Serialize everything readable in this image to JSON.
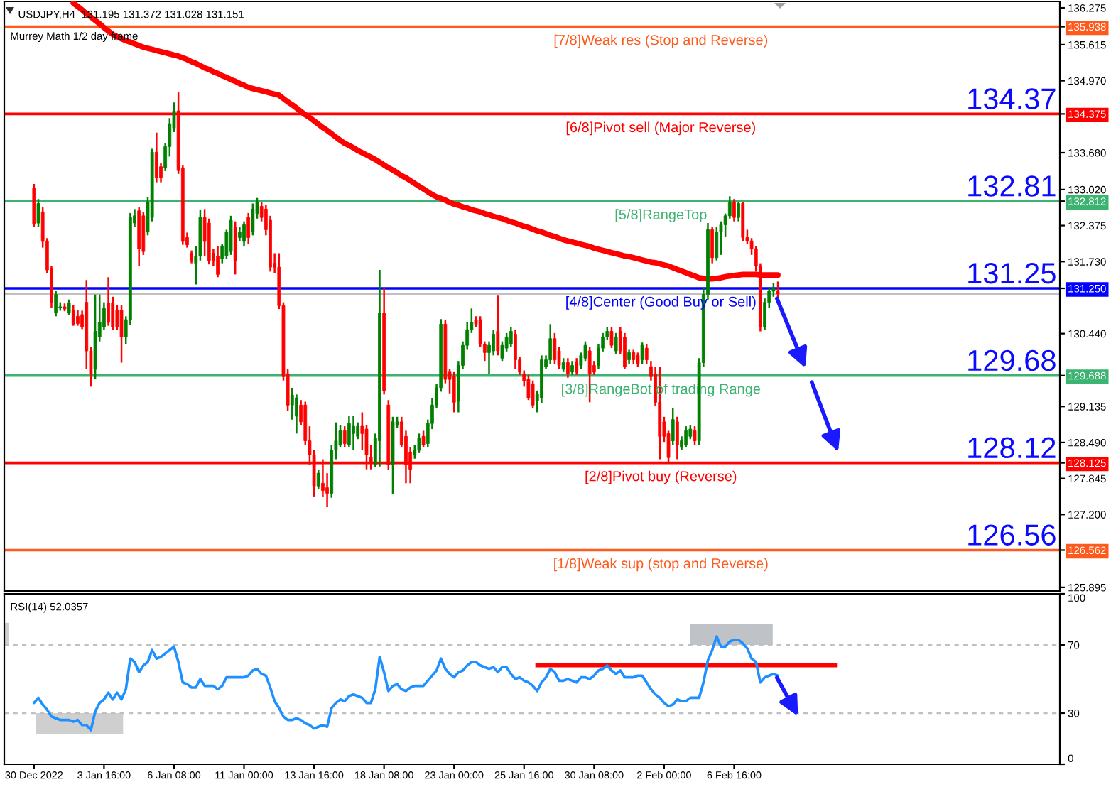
{
  "chart_data": [
    {
      "type": "candlestick",
      "title": "USDJPY,H4  131.195 131.372 131.028 131.151",
      "subtitle": "Murrey Math 1/2 day frame",
      "categories": [
        null,
        null,
        null,
        null,
        null,
        null,
        null,
        null,
        null,
        null,
        null,
        null,
        null,
        null,
        null,
        null,
        null,
        null,
        null,
        null,
        null,
        null,
        null,
        null,
        null,
        null,
        null,
        null,
        null,
        null,
        null,
        null,
        null,
        null,
        null,
        null,
        null,
        null,
        null,
        null,
        null,
        null,
        null,
        null,
        null,
        null,
        null,
        null,
        null,
        null,
        null,
        null,
        null,
        null,
        null,
        null,
        null,
        null,
        null,
        null,
        null,
        null,
        null,
        null,
        null,
        null,
        null,
        null,
        null,
        null,
        null,
        null,
        null,
        null,
        null,
        null,
        null,
        null,
        null,
        null,
        null,
        null,
        null,
        null,
        null,
        null,
        null,
        null,
        null,
        null,
        null,
        null,
        null,
        null,
        null,
        null,
        null,
        null,
        null,
        null,
        null,
        null,
        null,
        null,
        null,
        null,
        null,
        null,
        null,
        null,
        null,
        null,
        null,
        null,
        null,
        null,
        null,
        null,
        null,
        null,
        null,
        null,
        null,
        null,
        null,
        null,
        null,
        null,
        null,
        null,
        null,
        null,
        null,
        null,
        null,
        null,
        null,
        null,
        null,
        null,
        null,
        null,
        null,
        null,
        null,
        null,
        null,
        null,
        null,
        null,
        null,
        null,
        null,
        null,
        null,
        null,
        null,
        null,
        null,
        null,
        null,
        null,
        null,
        null,
        null,
        null,
        null,
        null,
        null,
        null,
        null
      ],
      "ohlc": [
        [
          133.05,
          133.12,
          132.35,
          132.4
        ],
        [
          132.42,
          132.85,
          132.35,
          132.77
        ],
        [
          132.62,
          132.7,
          131.98,
          132.09
        ],
        [
          132.1,
          132.15,
          131.53,
          131.58
        ],
        [
          131.6,
          131.65,
          130.9,
          130.99
        ],
        [
          130.81,
          131.2,
          130.75,
          131.14
        ],
        [
          130.9,
          131.0,
          130.85,
          130.92
        ],
        [
          130.92,
          130.98,
          130.84,
          130.88
        ],
        [
          130.81,
          131.05,
          130.78,
          130.99
        ],
        [
          130.86,
          130.95,
          130.58,
          130.61
        ],
        [
          130.75,
          130.86,
          130.58,
          130.62
        ],
        [
          130.78,
          130.85,
          130.52,
          130.56
        ],
        [
          131.0,
          131.4,
          129.8,
          130.13
        ],
        [
          130.13,
          130.2,
          129.49,
          129.72
        ],
        [
          129.8,
          131.14,
          129.62,
          130.48
        ],
        [
          130.38,
          131.14,
          130.3,
          130.64
        ],
        [
          130.56,
          131.0,
          130.5,
          130.89
        ],
        [
          130.99,
          131.45,
          130.58,
          130.64
        ],
        [
          130.99,
          131.1,
          130.5,
          130.56
        ],
        [
          130.86,
          130.95,
          130.5,
          130.56
        ],
        [
          130.86,
          130.95,
          129.92,
          130.38
        ],
        [
          130.38,
          130.75,
          130.25,
          130.69
        ],
        [
          130.69,
          132.6,
          130.6,
          132.52
        ],
        [
          132.42,
          132.67,
          132.35,
          132.55
        ],
        [
          132.64,
          132.7,
          131.65,
          131.96
        ],
        [
          132.55,
          132.62,
          131.85,
          131.91
        ],
        [
          132.26,
          132.88,
          132.2,
          132.8
        ],
        [
          132.52,
          133.75,
          132.45,
          133.69
        ],
        [
          133.69,
          134.04,
          133.15,
          133.23
        ],
        [
          133.43,
          133.5,
          133.15,
          133.23
        ],
        [
          133.41,
          133.85,
          133.35,
          133.79
        ],
        [
          133.79,
          134.3,
          133.61,
          134.2
        ],
        [
          134.12,
          134.58,
          134.05,
          134.43
        ],
        [
          134.43,
          134.76,
          133.3,
          133.36
        ],
        [
          133.41,
          133.45,
          132.03,
          132.09
        ],
        [
          132.16,
          132.25,
          131.98,
          132.03
        ],
        [
          131.88,
          131.93,
          131.7,
          131.75
        ],
        [
          131.7,
          132.01,
          131.32,
          131.83
        ],
        [
          131.83,
          132.65,
          131.75,
          132.52
        ],
        [
          132.52,
          132.67,
          131.83,
          132.09
        ],
        [
          132.42,
          132.5,
          131.68,
          131.75
        ],
        [
          131.88,
          131.95,
          131.65,
          131.75
        ],
        [
          131.83,
          132.01,
          131.45,
          131.5
        ],
        [
          131.78,
          132.05,
          131.7,
          132.01
        ],
        [
          131.83,
          132.3,
          131.78,
          132.26
        ],
        [
          131.91,
          132.55,
          131.85,
          132.47
        ],
        [
          132.34,
          132.45,
          131.5,
          131.75
        ],
        [
          132.16,
          132.35,
          132.1,
          132.26
        ],
        [
          132.09,
          132.45,
          132.0,
          132.39
        ],
        [
          132.52,
          132.6,
          132.05,
          132.16
        ],
        [
          132.26,
          132.77,
          132.2,
          132.67
        ],
        [
          132.59,
          132.87,
          132.5,
          132.8
        ],
        [
          132.72,
          132.8,
          132.45,
          132.52
        ],
        [
          132.67,
          132.75,
          132.2,
          132.3
        ],
        [
          132.47,
          132.55,
          131.55,
          131.63
        ],
        [
          131.7,
          131.88,
          131.52,
          131.63
        ],
        [
          131.63,
          131.88,
          130.88,
          130.94
        ],
        [
          130.94,
          131.0,
          129.6,
          129.67
        ],
        [
          129.72,
          129.8,
          129.05,
          129.16
        ],
        [
          129.16,
          129.47,
          128.9,
          129.34
        ],
        [
          128.96,
          129.35,
          128.65,
          129.29
        ],
        [
          129.16,
          129.25,
          128.8,
          128.86
        ],
        [
          129.16,
          129.22,
          128.45,
          128.52
        ],
        [
          128.52,
          128.78,
          128.09,
          128.27
        ],
        [
          128.27,
          128.35,
          127.51,
          127.71
        ],
        [
          127.71,
          128.0,
          127.65,
          127.94
        ],
        [
          127.76,
          128.19,
          127.51,
          127.63
        ],
        [
          127.68,
          127.94,
          127.33,
          127.58
        ],
        [
          127.58,
          128.45,
          127.5,
          128.35
        ],
        [
          128.35,
          128.85,
          128.19,
          128.52
        ],
        [
          128.45,
          128.8,
          128.4,
          128.7
        ],
        [
          128.7,
          128.78,
          128.4,
          128.47
        ],
        [
          128.45,
          128.96,
          128.4,
          128.83
        ],
        [
          128.65,
          128.96,
          128.35,
          128.78
        ],
        [
          128.6,
          128.85,
          128.55,
          128.78
        ],
        [
          128.78,
          129.03,
          128.35,
          128.65
        ],
        [
          128.73,
          128.8,
          128.01,
          128.27
        ],
        [
          128.22,
          128.45,
          128.01,
          128.14
        ],
        [
          128.09,
          128.65,
          128.05,
          128.57
        ],
        [
          128.52,
          131.58,
          128.06,
          130.81
        ],
        [
          130.81,
          131.25,
          129.35,
          129.41
        ],
        [
          129.16,
          129.25,
          128.0,
          128.09
        ],
        [
          128.09,
          128.95,
          127.56,
          128.86
        ],
        [
          128.8,
          128.95,
          128.75,
          128.86
        ],
        [
          128.86,
          128.95,
          128.4,
          128.45
        ],
        [
          128.6,
          128.7,
          127.76,
          128.09
        ],
        [
          128.32,
          128.4,
          127.76,
          128.01
        ],
        [
          128.27,
          128.45,
          128.2,
          128.35
        ],
        [
          128.35,
          128.65,
          128.3,
          128.57
        ],
        [
          128.6,
          128.7,
          128.4,
          128.45
        ],
        [
          128.47,
          128.9,
          128.4,
          128.83
        ],
        [
          128.83,
          129.29,
          128.73,
          129.16
        ],
        [
          129.16,
          129.54,
          129.1,
          129.47
        ],
        [
          129.47,
          130.7,
          129.4,
          130.61
        ],
        [
          130.61,
          130.68,
          129.55,
          129.62
        ],
        [
          129.75,
          129.8,
          129.37,
          129.62
        ],
        [
          129.67,
          129.75,
          129.03,
          129.21
        ],
        [
          129.23,
          129.95,
          129.03,
          129.87
        ],
        [
          129.87,
          130.3,
          129.8,
          130.23
        ],
        [
          130.23,
          130.64,
          130.15,
          130.51
        ],
        [
          130.51,
          130.89,
          130.45,
          130.64
        ],
        [
          130.69,
          130.75,
          130.55,
          130.61
        ],
        [
          130.69,
          130.75,
          130.2,
          130.25
        ],
        [
          130.25,
          130.3,
          129.95,
          130.1
        ],
        [
          130.1,
          130.3,
          129.72,
          130.23
        ],
        [
          130.13,
          130.5,
          130.05,
          130.43
        ],
        [
          130.48,
          131.12,
          130.05,
          130.13
        ],
        [
          130.0,
          130.3,
          129.95,
          130.23
        ],
        [
          130.18,
          130.45,
          130.12,
          130.38
        ],
        [
          130.25,
          130.56,
          130.2,
          130.48
        ],
        [
          130.43,
          130.5,
          129.8,
          129.97
        ],
        [
          129.97,
          130.02,
          129.7,
          129.75
        ],
        [
          129.72,
          129.78,
          129.49,
          129.59
        ],
        [
          129.62,
          129.7,
          129.25,
          129.29
        ],
        [
          129.54,
          129.6,
          129.1,
          129.16
        ],
        [
          129.24,
          129.42,
          129.03,
          129.36
        ],
        [
          129.29,
          130.05,
          129.2,
          129.97
        ],
        [
          129.85,
          130.05,
          129.8,
          129.97
        ],
        [
          129.97,
          130.61,
          129.9,
          130.35
        ],
        [
          130.35,
          130.45,
          129.9,
          129.97
        ],
        [
          130.13,
          130.2,
          129.8,
          129.87
        ],
        [
          129.8,
          130.0,
          129.75,
          129.92
        ],
        [
          129.92,
          130.0,
          129.65,
          129.72
        ],
        [
          129.75,
          129.95,
          129.7,
          129.87
        ],
        [
          129.92,
          130.0,
          129.7,
          129.75
        ],
        [
          129.87,
          130.1,
          129.8,
          130.05
        ],
        [
          130.0,
          130.3,
          129.95,
          130.23
        ],
        [
          130.13,
          130.2,
          129.21,
          129.72
        ],
        [
          129.87,
          129.95,
          129.7,
          129.75
        ],
        [
          129.87,
          130.25,
          129.8,
          130.18
        ],
        [
          130.18,
          130.45,
          130.12,
          130.38
        ],
        [
          130.38,
          130.56,
          130.33,
          130.48
        ],
        [
          130.48,
          130.55,
          130.18,
          130.23
        ],
        [
          130.13,
          130.45,
          130.08,
          130.38
        ],
        [
          130.48,
          130.55,
          130.08,
          130.13
        ],
        [
          130.38,
          130.45,
          129.8,
          129.85
        ],
        [
          129.97,
          130.15,
          129.9,
          130.1
        ],
        [
          130.1,
          130.15,
          129.9,
          129.97
        ],
        [
          130.05,
          130.1,
          129.85,
          129.9
        ],
        [
          129.97,
          130.28,
          129.9,
          130.23
        ],
        [
          130.18,
          130.25,
          129.9,
          129.97
        ],
        [
          129.85,
          129.95,
          129.6,
          129.67
        ],
        [
          129.72,
          129.85,
          129.15,
          129.21
        ],
        [
          129.21,
          129.85,
          128.19,
          128.6
        ],
        [
          128.86,
          128.95,
          128.5,
          128.6
        ],
        [
          128.65,
          128.7,
          128.14,
          128.22
        ],
        [
          128.52,
          129.11,
          128.45,
          128.9
        ],
        [
          128.86,
          128.95,
          128.19,
          128.45
        ],
        [
          128.4,
          128.6,
          128.35,
          128.52
        ],
        [
          128.45,
          128.78,
          128.4,
          128.7
        ],
        [
          128.6,
          128.8,
          128.55,
          128.73
        ],
        [
          128.7,
          128.78,
          128.45,
          128.52
        ],
        [
          128.52,
          130.0,
          128.45,
          129.92
        ],
        [
          129.92,
          131.25,
          129.85,
          131.14
        ],
        [
          131.14,
          132.42,
          131.05,
          132.3
        ],
        [
          132.3,
          132.35,
          131.7,
          131.8
        ],
        [
          131.8,
          132.35,
          131.75,
          132.26
        ],
        [
          132.26,
          132.45,
          131.85,
          132.39
        ],
        [
          132.39,
          132.59,
          132.18,
          132.55
        ],
        [
          132.55,
          132.9,
          132.5,
          132.8
        ],
        [
          132.8,
          132.85,
          132.45,
          132.52
        ],
        [
          132.52,
          132.8,
          132.45,
          132.77
        ],
        [
          132.77,
          132.8,
          132.1,
          132.16
        ],
        [
          132.16,
          132.3,
          132.05,
          132.1
        ],
        [
          132.1,
          132.15,
          131.85,
          131.96
        ],
        [
          131.96,
          132.0,
          131.55,
          131.65
        ],
        [
          131.65,
          131.7,
          130.48,
          130.56
        ],
        [
          130.56,
          131.07,
          130.5,
          131.0
        ],
        [
          131.0,
          131.25,
          130.9,
          131.2
        ],
        [
          131.2,
          131.35,
          131.1,
          131.25
        ],
        [
          131.195,
          131.372,
          131.028,
          131.151
        ]
      ],
      "series": [
        {
          "type": "line",
          "color": "#ff0000",
          "values": [
            null,
            null,
            null,
            null,
            null,
            null,
            null,
            null,
            null,
            136.36,
            136.3,
            136.24,
            136.17,
            136.11,
            136.05,
            135.99,
            135.92,
            135.86,
            135.8,
            135.76,
            135.72,
            135.69,
            135.66,
            135.63,
            135.6,
            135.57,
            135.55,
            135.53,
            135.51,
            135.49,
            135.47,
            135.45,
            135.43,
            135.41,
            135.38,
            135.35,
            135.31,
            135.28,
            135.24,
            135.2,
            135.17,
            135.13,
            135.1,
            135.06,
            135.03,
            134.99,
            134.96,
            134.92,
            134.89,
            134.85,
            134.83,
            134.81,
            134.79,
            134.77,
            134.75,
            134.73,
            134.71,
            134.65,
            134.59,
            134.54,
            134.48,
            134.42,
            134.36,
            134.31,
            134.25,
            134.19,
            134.13,
            134.08,
            134.02,
            133.96,
            133.9,
            133.85,
            133.81,
            133.77,
            133.72,
            133.68,
            133.64,
            133.6,
            133.56,
            133.51,
            133.46,
            133.41,
            133.37,
            133.32,
            133.27,
            133.23,
            133.18,
            133.13,
            133.08,
            133.03,
            132.98,
            132.93,
            132.89,
            132.86,
            132.83,
            132.79,
            132.76,
            132.74,
            132.71,
            132.69,
            132.66,
            132.64,
            132.62,
            132.59,
            132.57,
            132.54,
            132.52,
            132.5,
            132.47,
            132.44,
            132.42,
            132.39,
            132.36,
            132.34,
            132.31,
            132.28,
            132.26,
            132.23,
            132.2,
            132.18,
            132.15,
            132.12,
            132.1,
            132.08,
            132.06,
            132.04,
            132.02,
            132.0,
            131.97,
            131.95,
            131.93,
            131.91,
            131.89,
            131.87,
            131.85,
            131.83,
            131.82,
            131.8,
            131.78,
            131.76,
            131.74,
            131.72,
            131.71,
            131.69,
            131.67,
            131.65,
            131.62,
            131.59,
            131.56,
            131.53,
            131.5,
            131.47,
            131.44,
            131.43,
            131.42,
            131.42,
            131.43,
            131.44,
            131.46,
            131.47,
            131.48,
            131.49,
            131.5,
            131.5,
            131.5,
            131.5,
            131.49,
            131.49,
            131.49,
            131.49,
            131.49
          ]
        }
      ],
      "ylim": [
        125.83,
        136.39
      ],
      "yticks": [
        136.275,
        135.938,
        135.615,
        {
          "value": 134.97,
          "label": "134.970"
        },
        134.375,
        {
          "value": 133.68,
          "label": "133.680"
        },
        {
          "value": 133.02,
          "label": "133.020"
        },
        132.812,
        132.375,
        {
          "value": 131.73,
          "label": "131.730"
        },
        {
          "value": 131.25,
          "label": "131.250"
        },
        {
          "value": 130.44,
          "label": "130.440"
        },
        129.688,
        129.135,
        {
          "value": 128.49,
          "label": "128.490"
        },
        128.125,
        127.845,
        {
          "value": 127.2,
          "label": "127.200"
        },
        126.562,
        125.895
      ],
      "ref_lines": [
        {
          "axis": "y",
          "value": 135.938,
          "label": "[7/8]Weak res (Stop and Reverse)",
          "color": "#ff5a1e"
        },
        {
          "axis": "y",
          "value": 134.375,
          "label": "[6/8]Pivot sell (Major Reverse)",
          "color": "#ff0000"
        },
        {
          "axis": "y",
          "value": 132.812,
          "label": "[5/8]RangeTop",
          "color": "#3cb371"
        },
        {
          "axis": "y",
          "value": 131.25,
          "label": "[4/8]Center (Good Buy or Sell)",
          "color": "#0000ff"
        },
        {
          "axis": "y",
          "value": 129.688,
          "label": "[3/8]RangeBot of trading Range",
          "color": "#3cb371"
        },
        {
          "axis": "y",
          "value": 128.125,
          "label": "[2/8]Pivot buy (Reverse)",
          "color": "#ff0000"
        },
        {
          "axis": "y",
          "value": 126.562,
          "label": "[1/8]Weak sup (stop and Reverse)",
          "color": "#ff5a1e"
        },
        {
          "axis": "y",
          "value": 131.151,
          "color": "#c0c0c0"
        }
      ],
      "annotations": [
        {
          "text": "134.37",
          "y": 134.375
        },
        {
          "text": "132.81",
          "y": 132.812
        },
        {
          "text": "131.25",
          "y": 131.25
        },
        {
          "text": "129.68",
          "y": 129.688
        },
        {
          "text": "128.12",
          "y": 128.125
        },
        {
          "text": "126.56",
          "y": 126.562
        }
      ]
    },
    {
      "type": "line",
      "title": "RSI(14) 52.0357",
      "categories": [
        "30 Dec 2022",
        null,
        null,
        null,
        null,
        null,
        null,
        null,
        null,
        null,
        null,
        null,
        null,
        null,
        null,
        null,
        "3 Jan 16:00",
        null,
        null,
        null,
        null,
        null,
        null,
        null,
        null,
        null,
        null,
        null,
        null,
        null,
        null,
        null,
        "6 Jan 08:00",
        null,
        null,
        null,
        null,
        null,
        null,
        null,
        null,
        null,
        null,
        null,
        null,
        null,
        null,
        null,
        "11 Jan 00:00",
        null,
        null,
        null,
        null,
        null,
        null,
        null,
        null,
        null,
        null,
        null,
        null,
        null,
        null,
        null,
        "13 Jan 16:00",
        null,
        null,
        null,
        null,
        null,
        null,
        null,
        null,
        null,
        null,
        null,
        null,
        null,
        null,
        null,
        "18 Jan 08:00",
        null,
        null,
        null,
        null,
        null,
        null,
        null,
        null,
        null,
        null,
        null,
        null,
        null,
        null,
        null,
        "23 Jan 00:00",
        null,
        null,
        null,
        null,
        null,
        null,
        null,
        null,
        null,
        null,
        null,
        null,
        null,
        null,
        null,
        "25 Jan 16:00",
        null,
        null,
        null,
        null,
        null,
        null,
        null,
        null,
        null,
        null,
        null,
        null,
        null,
        null,
        null,
        "30 Jan 08:00",
        null,
        null,
        null,
        null,
        null,
        null,
        null,
        null,
        null,
        null,
        null,
        null,
        null,
        null,
        null,
        "2 Feb 00:00",
        null,
        null,
        null,
        null,
        null,
        null,
        null,
        null,
        null,
        null,
        null,
        null,
        null,
        null,
        null,
        "6 Feb 16:00",
        null,
        null,
        null,
        null,
        null,
        null,
        null,
        null,
        null,
        null
      ],
      "series": [
        {
          "color": "#1e90ff",
          "values": [
            36,
            39,
            35,
            32,
            28,
            27,
            26,
            26,
            26,
            25,
            26,
            23,
            23,
            20,
            31,
            36,
            38,
            42,
            38,
            42,
            38,
            44,
            62,
            60,
            54,
            58,
            60,
            67,
            62,
            63,
            65,
            67,
            69,
            60,
            48,
            47,
            45,
            45,
            50,
            46,
            46,
            46,
            44,
            46,
            51,
            51,
            51,
            51,
            51,
            52,
            55,
            56,
            53,
            52,
            45,
            37,
            33,
            28,
            26,
            26,
            27,
            26,
            24,
            23,
            21,
            22,
            23,
            22,
            33,
            36,
            38,
            37,
            40,
            41,
            40,
            39,
            36,
            36,
            44,
            63,
            54,
            43,
            46,
            47,
            44,
            43,
            45,
            46,
            46,
            46,
            49,
            52,
            55,
            62,
            56,
            53,
            51,
            54,
            55,
            58,
            60,
            60,
            58,
            57,
            56,
            57,
            54,
            57,
            57,
            53,
            50,
            51,
            49,
            48,
            46,
            43,
            48,
            51,
            56,
            54,
            49,
            49,
            50,
            49,
            48,
            51,
            51,
            50,
            52,
            55,
            56,
            58,
            55,
            53,
            55,
            51,
            51,
            51,
            52,
            52,
            48,
            44,
            41,
            39,
            36,
            34,
            35,
            38,
            37,
            37,
            39,
            39,
            39,
            48,
            61,
            67,
            75,
            69,
            69,
            72,
            73,
            73,
            71,
            68,
            62,
            60,
            48,
            51,
            52,
            53,
            52
          ]
        }
      ],
      "ylim": [
        0,
        100
      ],
      "yticks": [
        0,
        30,
        70,
        100
      ],
      "ref_lines": [
        {
          "axis": "y",
          "value": 70,
          "color": "#c0c0c0",
          "line_style": "dashed"
        },
        {
          "axis": "y",
          "value": 30,
          "color": "#c0c0c0",
          "line_style": "dashed"
        },
        {
          "axis": "y",
          "value": 58,
          "color": "#ff0000"
        }
      ]
    }
  ]
}
